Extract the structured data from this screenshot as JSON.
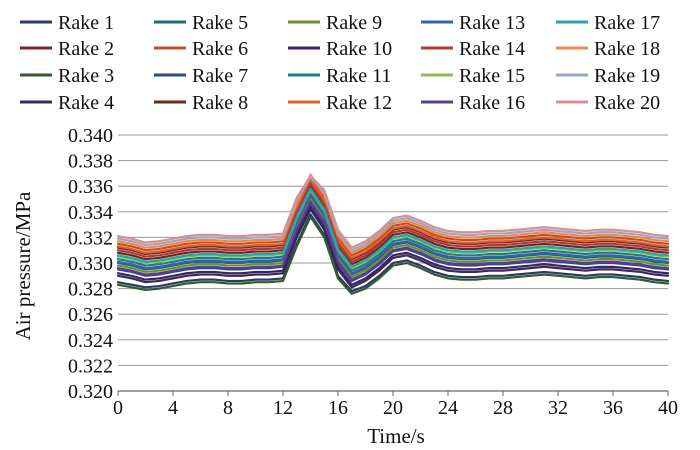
{
  "chart_data": {
    "type": "line",
    "title": "",
    "xlabel": "Time/s",
    "ylabel": "Air pressure/MPa",
    "xlim": [
      0,
      40
    ],
    "ylim": [
      0.32,
      0.34
    ],
    "x_ticks": [
      "0",
      "4",
      "8",
      "12",
      "16",
      "20",
      "24",
      "28",
      "32",
      "36",
      "40"
    ],
    "y_ticks": [
      "0.320",
      "0.322",
      "0.324",
      "0.326",
      "0.328",
      "0.330",
      "0.332",
      "0.334",
      "0.336",
      "0.338",
      "0.340"
    ],
    "grid": "horizontal",
    "legend_position": "top",
    "x": [
      0,
      1,
      2,
      3,
      4,
      5,
      6,
      7,
      8,
      9,
      10,
      11,
      12,
      13,
      14,
      15,
      16,
      17,
      18,
      19,
      20,
      21,
      22,
      23,
      24,
      25,
      26,
      27,
      28,
      29,
      30,
      31,
      32,
      33,
      34,
      35,
      36,
      37,
      38,
      39,
      40
    ],
    "series": [
      {
        "name": "Rake 1",
        "color": "#2b3a67",
        "values": [
          0.3285,
          0.3283,
          0.3281,
          0.3282,
          0.3284,
          0.3286,
          0.3287,
          0.3287,
          0.3286,
          0.3286,
          0.3287,
          0.3287,
          0.3288,
          0.3315,
          0.3338,
          0.3322,
          0.329,
          0.3278,
          0.3282,
          0.329,
          0.33,
          0.3302,
          0.3298,
          0.3293,
          0.329,
          0.3289,
          0.3289,
          0.329,
          0.329,
          0.3291,
          0.3292,
          0.3293,
          0.3292,
          0.3291,
          0.329,
          0.3291,
          0.3291,
          0.329,
          0.3289,
          0.3287,
          0.3286
        ]
      },
      {
        "name": "Rake 2",
        "color": "#7b2424",
        "values": [
          0.3312,
          0.331,
          0.3307,
          0.3308,
          0.331,
          0.3312,
          0.3313,
          0.3313,
          0.3312,
          0.3312,
          0.3313,
          0.3313,
          0.3314,
          0.3342,
          0.3364,
          0.3348,
          0.3317,
          0.3303,
          0.3308,
          0.3316,
          0.3326,
          0.3328,
          0.3324,
          0.3319,
          0.3316,
          0.3315,
          0.3315,
          0.3316,
          0.3316,
          0.3317,
          0.3318,
          0.3319,
          0.3318,
          0.3317,
          0.3316,
          0.3317,
          0.3317,
          0.3316,
          0.3315,
          0.3313,
          0.3312
        ]
      },
      {
        "name": "Rake 3",
        "color": "#2f5d2f",
        "values": [
          0.3283,
          0.3281,
          0.3279,
          0.328,
          0.3282,
          0.3284,
          0.3285,
          0.3285,
          0.3284,
          0.3284,
          0.3285,
          0.3285,
          0.3286,
          0.3313,
          0.3336,
          0.332,
          0.3288,
          0.3276,
          0.328,
          0.3288,
          0.3298,
          0.33,
          0.3296,
          0.3291,
          0.3288,
          0.3287,
          0.3287,
          0.3288,
          0.3288,
          0.3289,
          0.329,
          0.3291,
          0.329,
          0.3289,
          0.3288,
          0.3289,
          0.3289,
          0.3288,
          0.3287,
          0.3285,
          0.3284
        ]
      },
      {
        "name": "Rake 4",
        "color": "#3a2a55",
        "values": [
          0.329,
          0.3288,
          0.3285,
          0.3286,
          0.3288,
          0.329,
          0.3291,
          0.3291,
          0.329,
          0.329,
          0.3291,
          0.3291,
          0.3292,
          0.332,
          0.3342,
          0.3326,
          0.3295,
          0.3281,
          0.3286,
          0.3294,
          0.3304,
          0.3306,
          0.3302,
          0.3297,
          0.3294,
          0.3293,
          0.3293,
          0.3294,
          0.3294,
          0.3295,
          0.3296,
          0.3297,
          0.3296,
          0.3295,
          0.3294,
          0.3295,
          0.3295,
          0.3294,
          0.3293,
          0.3291,
          0.329
        ]
      },
      {
        "name": "Rake 5",
        "color": "#1f6b72",
        "values": [
          0.33,
          0.3298,
          0.3295,
          0.3296,
          0.3298,
          0.33,
          0.3301,
          0.3301,
          0.33,
          0.33,
          0.3301,
          0.3301,
          0.3302,
          0.333,
          0.3352,
          0.3336,
          0.3305,
          0.3291,
          0.3296,
          0.3304,
          0.3314,
          0.3316,
          0.3312,
          0.3307,
          0.3304,
          0.3303,
          0.3303,
          0.3304,
          0.3304,
          0.3305,
          0.3306,
          0.3307,
          0.3306,
          0.3305,
          0.3304,
          0.3305,
          0.3305,
          0.3304,
          0.3303,
          0.3301,
          0.33
        ]
      },
      {
        "name": "Rake 6",
        "color": "#c0522a",
        "values": [
          0.3315,
          0.3313,
          0.331,
          0.3311,
          0.3313,
          0.3315,
          0.3316,
          0.3316,
          0.3315,
          0.3315,
          0.3316,
          0.3316,
          0.3317,
          0.3345,
          0.3367,
          0.3351,
          0.332,
          0.3306,
          0.3311,
          0.3319,
          0.3329,
          0.3331,
          0.3327,
          0.3322,
          0.3319,
          0.3318,
          0.3318,
          0.3319,
          0.3319,
          0.332,
          0.3321,
          0.3322,
          0.3321,
          0.332,
          0.3319,
          0.332,
          0.332,
          0.3319,
          0.3318,
          0.3316,
          0.3315
        ]
      },
      {
        "name": "Rake 7",
        "color": "#2c4a8a",
        "values": [
          0.3295,
          0.3293,
          0.329,
          0.3291,
          0.3293,
          0.3295,
          0.3296,
          0.3296,
          0.3295,
          0.3295,
          0.3296,
          0.3296,
          0.3297,
          0.3325,
          0.3347,
          0.3331,
          0.33,
          0.3286,
          0.3291,
          0.3299,
          0.3309,
          0.3311,
          0.3307,
          0.3302,
          0.3299,
          0.3298,
          0.3298,
          0.3299,
          0.3299,
          0.33,
          0.3301,
          0.3302,
          0.3301,
          0.33,
          0.3299,
          0.33,
          0.33,
          0.3299,
          0.3298,
          0.3296,
          0.3295
        ]
      },
      {
        "name": "Rake 8",
        "color": "#6e2a1e",
        "values": [
          0.3308,
          0.3306,
          0.3303,
          0.3304,
          0.3306,
          0.3308,
          0.3309,
          0.3309,
          0.3308,
          0.3308,
          0.3309,
          0.3309,
          0.331,
          0.3338,
          0.336,
          0.3344,
          0.3313,
          0.3299,
          0.3304,
          0.3312,
          0.3322,
          0.3324,
          0.332,
          0.3315,
          0.3312,
          0.3311,
          0.3311,
          0.3312,
          0.3312,
          0.3313,
          0.3314,
          0.3315,
          0.3314,
          0.3313,
          0.3312,
          0.3313,
          0.3313,
          0.3312,
          0.3311,
          0.3309,
          0.3308
        ]
      },
      {
        "name": "Rake 9",
        "color": "#6c8f3a",
        "values": [
          0.3298,
          0.3296,
          0.3293,
          0.3294,
          0.3296,
          0.3298,
          0.3299,
          0.3299,
          0.3298,
          0.3298,
          0.3299,
          0.3299,
          0.33,
          0.3328,
          0.335,
          0.3334,
          0.3303,
          0.3289,
          0.3294,
          0.3302,
          0.3312,
          0.3314,
          0.331,
          0.3305,
          0.3302,
          0.3301,
          0.3301,
          0.3302,
          0.3302,
          0.3303,
          0.3304,
          0.3305,
          0.3304,
          0.3303,
          0.3302,
          0.3303,
          0.3303,
          0.3302,
          0.3301,
          0.3299,
          0.3298
        ]
      },
      {
        "name": "Rake 10",
        "color": "#3d2266",
        "values": [
          0.3292,
          0.329,
          0.3287,
          0.3288,
          0.329,
          0.3292,
          0.3293,
          0.3293,
          0.3292,
          0.3292,
          0.3293,
          0.3293,
          0.3294,
          0.3322,
          0.3344,
          0.3328,
          0.3297,
          0.3283,
          0.3288,
          0.3296,
          0.3306,
          0.3308,
          0.3304,
          0.3299,
          0.3296,
          0.3295,
          0.3295,
          0.3296,
          0.3296,
          0.3297,
          0.3298,
          0.3299,
          0.3298,
          0.3297,
          0.3296,
          0.3297,
          0.3297,
          0.3296,
          0.3295,
          0.3293,
          0.3292
        ]
      },
      {
        "name": "Rake 11",
        "color": "#1c7d8c",
        "values": [
          0.3303,
          0.3301,
          0.3298,
          0.3299,
          0.3301,
          0.3303,
          0.3304,
          0.3304,
          0.3303,
          0.3303,
          0.3304,
          0.3304,
          0.3305,
          0.3333,
          0.3355,
          0.3339,
          0.3308,
          0.3294,
          0.3299,
          0.3307,
          0.3317,
          0.3319,
          0.3315,
          0.331,
          0.3307,
          0.3306,
          0.3306,
          0.3307,
          0.3307,
          0.3308,
          0.3309,
          0.331,
          0.3309,
          0.3308,
          0.3307,
          0.3308,
          0.3308,
          0.3307,
          0.3306,
          0.3304,
          0.3303
        ]
      },
      {
        "name": "Rake 12",
        "color": "#e0612c",
        "values": [
          0.3313,
          0.3311,
          0.3308,
          0.3309,
          0.3311,
          0.3313,
          0.3314,
          0.3314,
          0.3313,
          0.3313,
          0.3314,
          0.3314,
          0.3315,
          0.3343,
          0.3365,
          0.3349,
          0.3318,
          0.3304,
          0.3309,
          0.3317,
          0.3327,
          0.3329,
          0.3325,
          0.332,
          0.3317,
          0.3316,
          0.3316,
          0.3317,
          0.3317,
          0.3318,
          0.3319,
          0.332,
          0.3319,
          0.3318,
          0.3317,
          0.3318,
          0.3318,
          0.3317,
          0.3316,
          0.3314,
          0.3313
        ]
      },
      {
        "name": "Rake 13",
        "color": "#3b5fa8",
        "values": [
          0.3301,
          0.3299,
          0.3296,
          0.3297,
          0.3299,
          0.3301,
          0.3302,
          0.3302,
          0.3301,
          0.3301,
          0.3302,
          0.3302,
          0.3303,
          0.3331,
          0.3353,
          0.3337,
          0.3306,
          0.3292,
          0.3297,
          0.3305,
          0.3315,
          0.3317,
          0.3313,
          0.3308,
          0.3305,
          0.3304,
          0.3304,
          0.3305,
          0.3305,
          0.3306,
          0.3307,
          0.3308,
          0.3307,
          0.3306,
          0.3305,
          0.3306,
          0.3306,
          0.3305,
          0.3304,
          0.3302,
          0.3301
        ]
      },
      {
        "name": "Rake 14",
        "color": "#b03a3a",
        "values": [
          0.331,
          0.3308,
          0.3305,
          0.3306,
          0.3308,
          0.331,
          0.3311,
          0.3311,
          0.331,
          0.331,
          0.3311,
          0.3311,
          0.3312,
          0.334,
          0.3362,
          0.3346,
          0.3315,
          0.3301,
          0.3306,
          0.3314,
          0.3324,
          0.3326,
          0.3322,
          0.3317,
          0.3314,
          0.3313,
          0.3313,
          0.3314,
          0.3314,
          0.3315,
          0.3316,
          0.3317,
          0.3316,
          0.3315,
          0.3314,
          0.3315,
          0.3315,
          0.3314,
          0.3313,
          0.3311,
          0.331
        ]
      },
      {
        "name": "Rake 15",
        "color": "#8dbb4f",
        "values": [
          0.3305,
          0.3303,
          0.33,
          0.3301,
          0.3303,
          0.3305,
          0.3306,
          0.3306,
          0.3305,
          0.3305,
          0.3306,
          0.3306,
          0.3307,
          0.3335,
          0.3357,
          0.3341,
          0.331,
          0.3296,
          0.3301,
          0.3309,
          0.3319,
          0.3321,
          0.3317,
          0.3312,
          0.3309,
          0.3308,
          0.3308,
          0.3309,
          0.3309,
          0.331,
          0.3311,
          0.3312,
          0.3311,
          0.331,
          0.3309,
          0.331,
          0.331,
          0.3309,
          0.3308,
          0.3306,
          0.3305
        ]
      },
      {
        "name": "Rake 16",
        "color": "#5a3f8f",
        "values": [
          0.3296,
          0.3294,
          0.3291,
          0.3292,
          0.3294,
          0.3296,
          0.3297,
          0.3297,
          0.3296,
          0.3296,
          0.3297,
          0.3297,
          0.3298,
          0.3326,
          0.3348,
          0.3332,
          0.3301,
          0.3287,
          0.3292,
          0.33,
          0.331,
          0.3312,
          0.3308,
          0.3303,
          0.33,
          0.3299,
          0.3299,
          0.33,
          0.33,
          0.3301,
          0.3302,
          0.3303,
          0.3302,
          0.3301,
          0.33,
          0.3301,
          0.3301,
          0.33,
          0.3299,
          0.3297,
          0.3296
        ]
      },
      {
        "name": "Rake 17",
        "color": "#2aa3a8",
        "values": [
          0.3306,
          0.3304,
          0.3301,
          0.3302,
          0.3304,
          0.3306,
          0.3307,
          0.3307,
          0.3306,
          0.3306,
          0.3307,
          0.3307,
          0.3308,
          0.3336,
          0.3358,
          0.3342,
          0.3311,
          0.3297,
          0.3302,
          0.331,
          0.332,
          0.3322,
          0.3318,
          0.3313,
          0.331,
          0.3309,
          0.3309,
          0.331,
          0.331,
          0.3311,
          0.3312,
          0.3313,
          0.3312,
          0.3311,
          0.331,
          0.3311,
          0.3311,
          0.331,
          0.3309,
          0.3307,
          0.3306
        ]
      },
      {
        "name": "Rake 18",
        "color": "#f08a4b",
        "values": [
          0.3317,
          0.3315,
          0.3312,
          0.3313,
          0.3315,
          0.3317,
          0.3318,
          0.3318,
          0.3317,
          0.3317,
          0.3318,
          0.3318,
          0.3319,
          0.3347,
          0.3369,
          0.3353,
          0.3322,
          0.3308,
          0.3313,
          0.3321,
          0.3331,
          0.3333,
          0.3329,
          0.3324,
          0.3321,
          0.332,
          0.332,
          0.3321,
          0.3321,
          0.3322,
          0.3323,
          0.3324,
          0.3323,
          0.3322,
          0.3321,
          0.3322,
          0.3322,
          0.3321,
          0.332,
          0.3318,
          0.3317
        ]
      },
      {
        "name": "Rake 19",
        "color": "#9aa6c8",
        "values": [
          0.3319,
          0.3317,
          0.3314,
          0.3315,
          0.3317,
          0.3319,
          0.332,
          0.332,
          0.3319,
          0.3319,
          0.332,
          0.332,
          0.3321,
          0.3349,
          0.3367,
          0.3355,
          0.3324,
          0.331,
          0.3315,
          0.3323,
          0.3333,
          0.3335,
          0.3331,
          0.3326,
          0.3323,
          0.3322,
          0.3322,
          0.3323,
          0.3323,
          0.3324,
          0.3325,
          0.3326,
          0.3325,
          0.3324,
          0.3323,
          0.3324,
          0.3324,
          0.3323,
          0.3322,
          0.332,
          0.3319
        ]
      },
      {
        "name": "Rake 20",
        "color": "#d99090",
        "values": [
          0.3321,
          0.3319,
          0.3316,
          0.3317,
          0.3319,
          0.3321,
          0.3322,
          0.3322,
          0.3321,
          0.3321,
          0.3322,
          0.3322,
          0.3323,
          0.3351,
          0.3368,
          0.3357,
          0.3326,
          0.3312,
          0.3317,
          0.3325,
          0.3335,
          0.3337,
          0.3333,
          0.3328,
          0.3325,
          0.3324,
          0.3324,
          0.3325,
          0.3325,
          0.3326,
          0.3327,
          0.3328,
          0.3327,
          0.3326,
          0.3325,
          0.3326,
          0.3326,
          0.3325,
          0.3324,
          0.3322,
          0.3321
        ]
      }
    ]
  }
}
